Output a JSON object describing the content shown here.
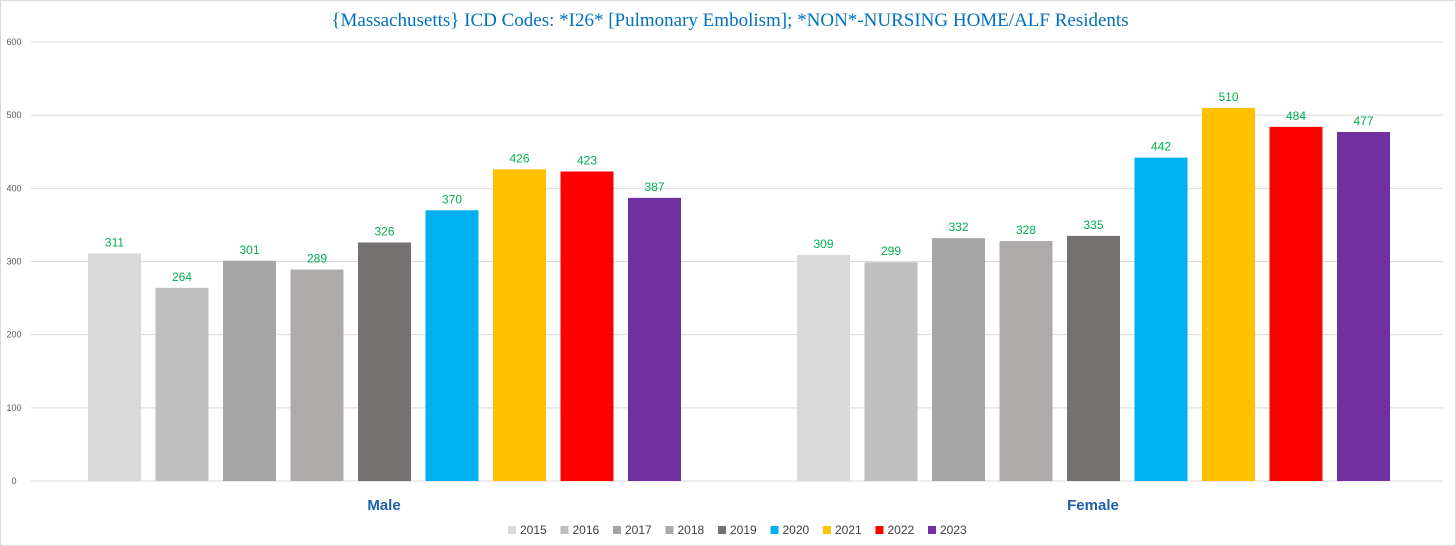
{
  "chart_data": {
    "type": "bar",
    "title": "{Massachusetts}   ICD Codes: *I26* [Pulmonary Embolism]; *NON*-NURSING HOME/ALF Residents",
    "categories": [
      "Male",
      "Female"
    ],
    "yticks": [
      "0",
      "100",
      "200",
      "300",
      "400",
      "500",
      "600"
    ],
    "ylim": [
      0,
      600
    ],
    "grid": true,
    "legend_position": "bottom",
    "series": [
      {
        "name": "2015",
        "color": "#d9d9d9",
        "values": [
          311,
          309
        ]
      },
      {
        "name": "2016",
        "color": "#bfbfbf",
        "values": [
          264,
          299
        ]
      },
      {
        "name": "2017",
        "color": "#a6a6a6",
        "values": [
          301,
          332
        ]
      },
      {
        "name": "2018",
        "color": "#aeaaaa",
        "values": [
          289,
          328
        ]
      },
      {
        "name": "2019",
        "color": "#767171",
        "values": [
          326,
          335
        ]
      },
      {
        "name": "2020",
        "color": "#00b0f0",
        "values": [
          370,
          442
        ]
      },
      {
        "name": "2021",
        "color": "#ffc000",
        "values": [
          426,
          510
        ]
      },
      {
        "name": "2022",
        "color": "#ff0000",
        "values": [
          423,
          484
        ]
      },
      {
        "name": "2023",
        "color": "#7030a0",
        "values": [
          387,
          477
        ]
      }
    ]
  }
}
